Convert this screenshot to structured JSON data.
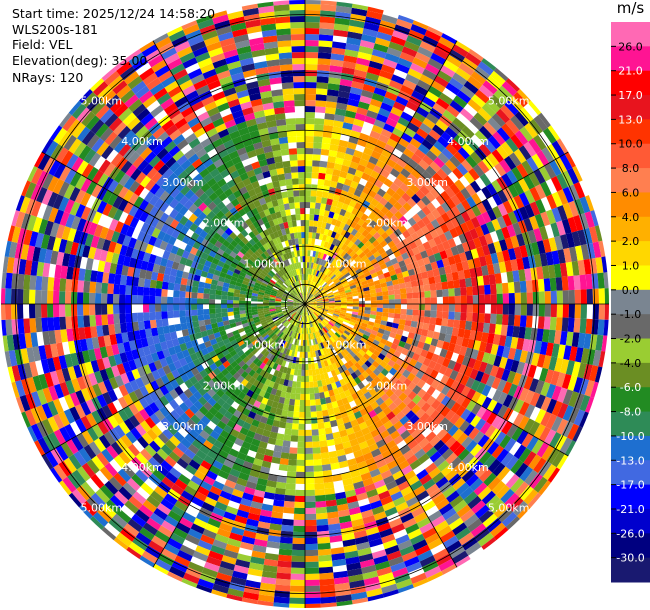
{
  "header": {
    "start_time": "Start time: 2025/12/24 14:58:20",
    "site": "WLS200s-181",
    "field": "Field: VEL",
    "elevation": "Elevation(deg): 35.00",
    "nrays": "NRays: 120"
  },
  "chart_data": {
    "type": "heatmap",
    "projection": "polar-ppi",
    "grid": true,
    "range_ring_labels": [
      "1.00km",
      "2.00km",
      "3.00km",
      "4.00km",
      "5.00km"
    ],
    "range_rings_km": [
      1,
      2,
      3,
      4,
      5
    ],
    "max_range_km": 5.25,
    "azimuth_spokes_deg": [
      0,
      30,
      60,
      90,
      120,
      150,
      180,
      210,
      240,
      270,
      300,
      330
    ],
    "colorbar": {
      "unit_label": "m/s",
      "placement": "right",
      "tick_labels": [
        "26.0",
        "21.0",
        "17.0",
        "13.0",
        "10.0",
        "8.0",
        "6.0",
        "4.0",
        "2.0",
        "1.0",
        "0.0",
        "-1.0",
        "-2.0",
        "-4.0",
        "-6.0",
        "-8.0",
        "-10.0",
        "-13.0",
        "-17.0",
        "-21.0",
        "-26.0",
        "-30.0"
      ],
      "colors": [
        "#ff69b4",
        "#ff1493",
        "#ff0000",
        "#e8141e",
        "#ff3300",
        "#ff5a35",
        "#ff7f50",
        "#ff8c00",
        "#ffb000",
        "#ffd700",
        "#ffff00",
        "#7a8591",
        "#696969",
        "#9acd32",
        "#6b8e23",
        "#228b22",
        "#2e8b57",
        "#1e6fd0",
        "#4169e1",
        "#0000ff",
        "#0000cd",
        "#000080",
        "#191970"
      ]
    },
    "pattern": {
      "near_field": "approaching (blue/green) toward west, receding (yellow/orange/red/pink) toward east",
      "far_field": "noisy speckle across all velocity colors"
    }
  }
}
